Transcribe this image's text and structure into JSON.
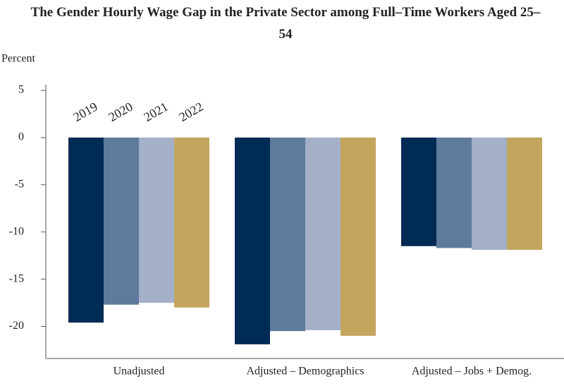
{
  "chart_data": {
    "type": "bar",
    "title": "The Gender Hourly Wage Gap in the Private Sector among Full–Time Workers Aged 25–54",
    "y_label": "Percent",
    "categories": [
      "Unadjusted",
      "Adjusted – Demographics",
      "Adjusted – Jobs + Demog."
    ],
    "series": [
      {
        "name": "2019",
        "color": "#002b54",
        "values": [
          -19.6,
          -21.9,
          -11.5
        ]
      },
      {
        "name": "2020",
        "color": "#5f7a9c",
        "values": [
          -17.7,
          -20.5,
          -11.7
        ]
      },
      {
        "name": "2021",
        "color": "#a4b0c8",
        "values": [
          -17.5,
          -20.4,
          -11.9
        ]
      },
      {
        "name": "2022",
        "color": "#c3a55e",
        "values": [
          -18.0,
          -21.0,
          -11.9
        ]
      }
    ],
    "ylim": [
      -23.4,
      5.6
    ],
    "yticks": [
      5,
      0,
      -5,
      -10,
      -15,
      -20
    ]
  }
}
